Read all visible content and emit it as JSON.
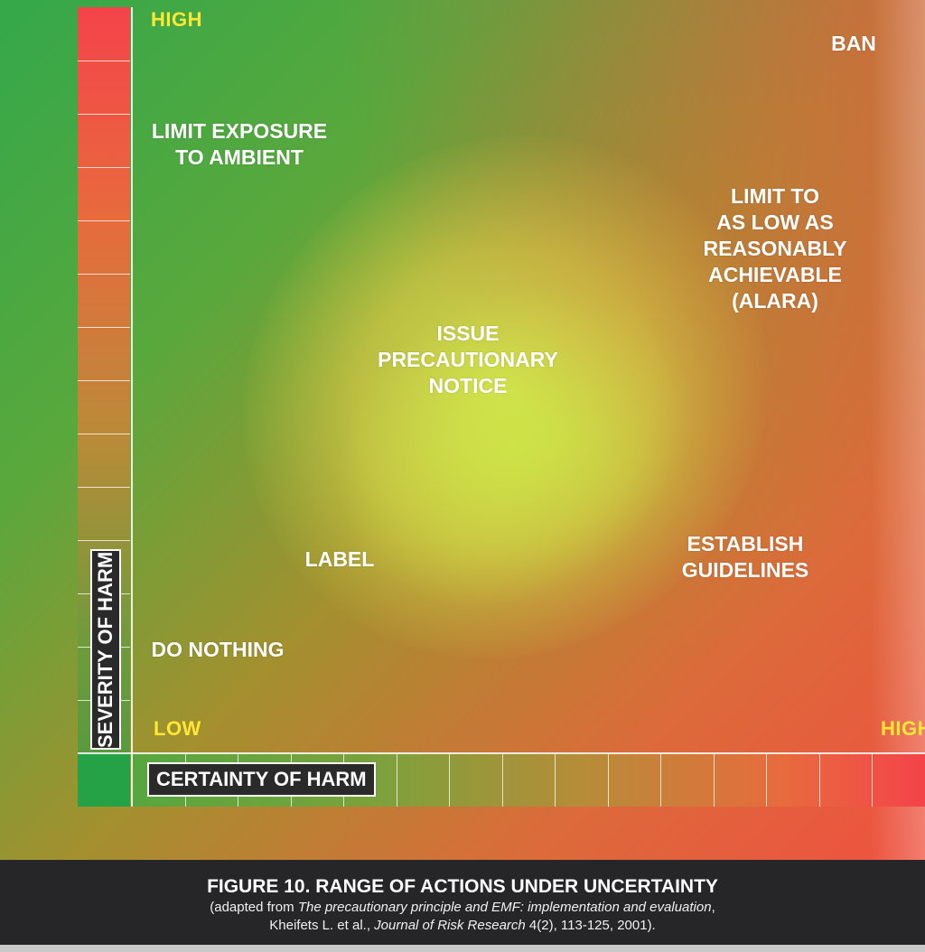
{
  "axes": {
    "y": {
      "title": "SEVERITY OF HARM",
      "high": "HIGH",
      "low": "LOW",
      "segments": 14
    },
    "x": {
      "title": "CERTAINTY OF HARM",
      "high": "HIGH",
      "segments": 15
    }
  },
  "regions": {
    "ban": "BAN",
    "limit_exposure": "LIMIT EXPOSURE\nTO AMBIENT",
    "alara": "LIMIT TO\nAS LOW AS\nREASONABLY\nACHIEVABLE\n(ALARA)",
    "precautionary": "ISSUE\nPRECAUTIONARY\nNOTICE",
    "label": "LABEL",
    "guidelines": "ESTABLISH\nGUIDELINES",
    "do_nothing": "DO NOTHING"
  },
  "colors": {
    "low": "#24a245",
    "mid": "#d4e252",
    "high": "#f4434a",
    "axis_label": "#ffe833",
    "caption_bg": "#262628"
  },
  "caption": {
    "title": "FIGURE 10. RANGE OF ACTIONS UNDER UNCERTAINTY",
    "source_pre": "(adapted from ",
    "source_title": "The precautionary principle and EMF: implementation and evaluation",
    "source_mid": ",",
    "source_authors": "Kheifets L. et al., ",
    "source_journal": "Journal of Risk Research",
    "source_post": " 4(2), 113-125, 2001)."
  }
}
